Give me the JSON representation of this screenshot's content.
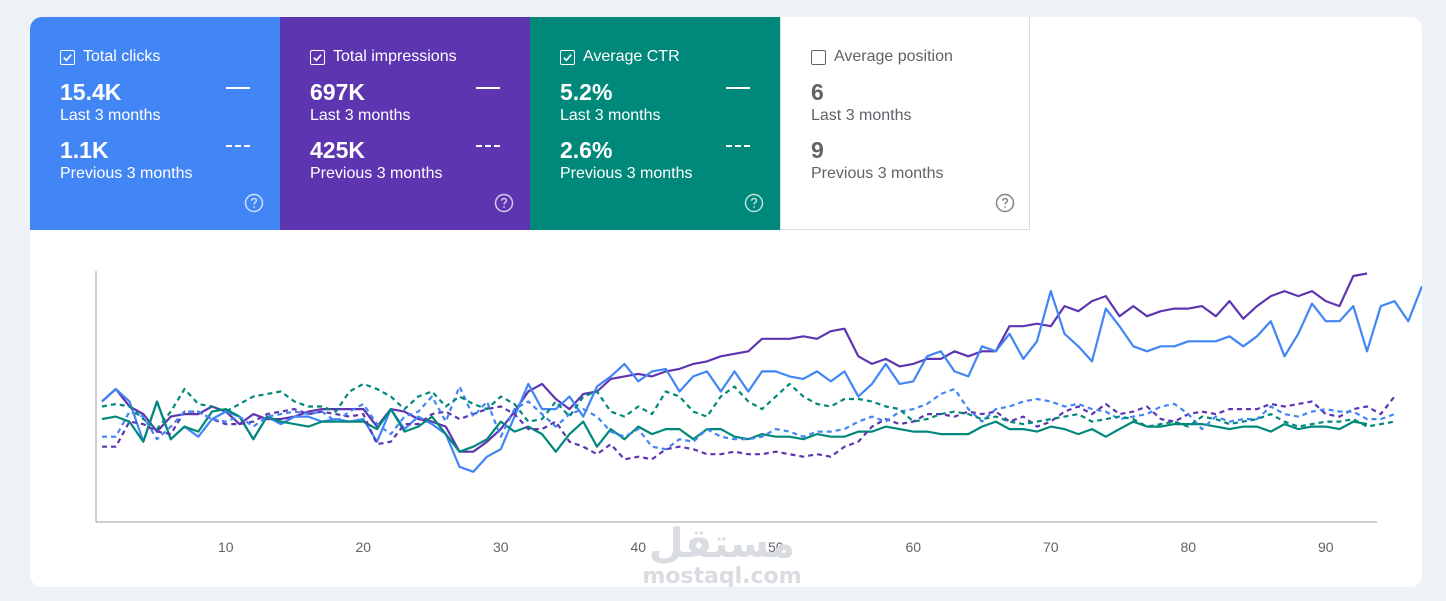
{
  "metrics": [
    {
      "name": "Total clicks",
      "checked": true,
      "current_value": "15.4K",
      "current_label": "Last 3 months",
      "previous_value": "1.1K",
      "previous_label": "Previous 3 months",
      "color": "#4285f4"
    },
    {
      "name": "Total impressions",
      "checked": true,
      "current_value": "697K",
      "current_label": "Last 3 months",
      "previous_value": "425K",
      "previous_label": "Previous 3 months",
      "color": "#5e35b1"
    },
    {
      "name": "Average CTR",
      "checked": true,
      "current_value": "5.2%",
      "current_label": "Last 3 months",
      "previous_value": "2.6%",
      "previous_label": "Previous 3 months",
      "color": "#00897b"
    },
    {
      "name": "Average position",
      "checked": false,
      "current_value": "6",
      "current_label": "Last 3 months",
      "previous_value": "9",
      "previous_label": "Previous 3 months",
      "color": "#ffffff"
    }
  ],
  "watermark": {
    "arabic": "مستقل",
    "latin": "mostaql.com"
  },
  "chart_data": {
    "type": "line",
    "title": "",
    "xlabel": "",
    "ylabel": "",
    "xlim": [
      0,
      93
    ],
    "ylim": [
      0,
      100
    ],
    "x_ticks": [
      10,
      20,
      30,
      40,
      50,
      60,
      70,
      80,
      90
    ],
    "grid": false,
    "series": [
      {
        "name": "Total impressions - Last 3 months",
        "color": "#5e35b1",
        "style": "solid",
        "values": [
          48,
          53,
          46,
          43,
          36,
          42,
          43,
          43,
          46,
          44,
          39,
          43,
          41,
          41,
          42,
          44,
          45,
          45,
          45,
          45,
          38,
          45,
          44,
          41,
          40,
          38,
          28,
          28,
          32,
          37,
          44,
          52,
          55,
          49,
          45,
          51,
          52,
          57,
          58,
          59,
          58,
          60,
          61,
          63,
          64,
          66,
          67,
          68,
          73,
          73,
          73,
          74,
          73,
          76,
          77,
          66,
          63,
          65,
          62,
          63,
          65,
          65,
          68,
          66,
          68,
          68,
          78,
          78,
          79,
          78,
          86,
          84,
          88,
          90,
          82,
          86,
          82,
          84,
          85,
          85,
          86,
          82,
          88,
          81,
          86,
          90,
          92,
          90,
          92,
          88,
          86,
          98,
          99
        ]
      },
      {
        "name": "Total clicks - Last 3 months",
        "color": "#4285f4",
        "style": "solid",
        "values": [
          48,
          53,
          48,
          32,
          48,
          33,
          38,
          34,
          41,
          44,
          42,
          33,
          42,
          39,
          42,
          42,
          40,
          41,
          40,
          41,
          32,
          45,
          37,
          42,
          39,
          35,
          22,
          20,
          26,
          29,
          42,
          55,
          45,
          45,
          50,
          42,
          54,
          58,
          63,
          56,
          60,
          61,
          52,
          58,
          60,
          52,
          60,
          52,
          60,
          60,
          58,
          57,
          60,
          56,
          60,
          50,
          55,
          63,
          55,
          56,
          66,
          68,
          60,
          58,
          70,
          68,
          75,
          65,
          72,
          92,
          75,
          70,
          64,
          85,
          78,
          70,
          68,
          70,
          70,
          72,
          72,
          72,
          74,
          70,
          74,
          80,
          66,
          75,
          87,
          80,
          80,
          86,
          68,
          86,
          88,
          80,
          94
        ]
      },
      {
        "name": "Average CTR - Last 3 months",
        "color": "#00897b",
        "style": "solid",
        "values": [
          41,
          42,
          40,
          32,
          48,
          33,
          38,
          36,
          44,
          45,
          42,
          33,
          42,
          40,
          39,
          38,
          40,
          40,
          40,
          40,
          37,
          45,
          36,
          38,
          42,
          35,
          28,
          30,
          33,
          40,
          36,
          38,
          35,
          28,
          35,
          40,
          30,
          37,
          33,
          38,
          35,
          37,
          37,
          33,
          37,
          37,
          34,
          33,
          35,
          34,
          34,
          33,
          35,
          34,
          34,
          36,
          36,
          38,
          37,
          36,
          36,
          35,
          35,
          35,
          38,
          40,
          37,
          37,
          36,
          38,
          37,
          35,
          37,
          34,
          37,
          40,
          38,
          38,
          39,
          39,
          39,
          38,
          37,
          38,
          38,
          36,
          39,
          37,
          38,
          38,
          37,
          40,
          39
        ]
      },
      {
        "name": "Total impressions - Previous 3 months",
        "color": "#5e35b1",
        "style": "dashed",
        "values": [
          30,
          30,
          40,
          39,
          36,
          35,
          44,
          44,
          41,
          39,
          39,
          40,
          43,
          44,
          45,
          43,
          44,
          43,
          42,
          43,
          31,
          32,
          39,
          39,
          43,
          44,
          41,
          43,
          45,
          46,
          43,
          37,
          37,
          40,
          32,
          30,
          27,
          31,
          25,
          26,
          25,
          29,
          30,
          29,
          27,
          27,
          28,
          27,
          27,
          28,
          27,
          26,
          27,
          26,
          30,
          32,
          38,
          41,
          39,
          40,
          43,
          43,
          42,
          44,
          43,
          44,
          40,
          42,
          38,
          40,
          44,
          46,
          43,
          47,
          43,
          44,
          46,
          41,
          40,
          43,
          44,
          43,
          45,
          45,
          45,
          47,
          46,
          47,
          48,
          43,
          42,
          45,
          46,
          43,
          50
        ]
      },
      {
        "name": "Total clicks - Previous 3 months",
        "color": "#4285f4",
        "style": "dashed",
        "values": [
          34,
          34,
          44,
          42,
          33,
          38,
          44,
          44,
          41,
          40,
          42,
          38,
          42,
          43,
          44,
          43,
          44,
          40,
          44,
          47,
          39,
          35,
          42,
          44,
          50,
          40,
          54,
          42,
          48,
          34,
          45,
          48,
          43,
          38,
          43,
          45,
          42,
          36,
          34,
          37,
          30,
          29,
          33,
          32,
          37,
          34,
          33,
          33,
          34,
          37,
          36,
          34,
          36,
          36,
          37,
          40,
          42,
          40,
          44,
          45,
          47,
          51,
          53,
          45,
          40,
          45,
          46,
          48,
          49,
          48,
          46,
          47,
          45,
          44,
          41,
          42,
          43,
          46,
          47,
          43,
          37,
          42,
          40,
          41,
          41,
          46,
          43,
          42,
          44,
          45,
          44,
          44,
          41,
          41,
          43
        ]
      },
      {
        "name": "Average CTR - Previous 3 months",
        "color": "#00897b",
        "style": "dashed",
        "values": [
          46,
          47,
          46,
          41,
          37,
          44,
          53,
          47,
          46,
          44,
          47,
          50,
          51,
          52,
          48,
          46,
          46,
          44,
          52,
          55,
          53,
          50,
          45,
          50,
          52,
          46,
          50,
          47,
          45,
          50,
          47,
          40,
          41,
          48,
          42,
          50,
          52,
          44,
          42,
          46,
          43,
          52,
          50,
          44,
          42,
          50,
          54,
          48,
          45,
          50,
          55,
          50,
          47,
          46,
          49,
          49,
          48,
          46,
          45,
          40,
          41,
          43,
          44,
          43,
          41,
          42,
          40,
          39,
          40,
          41,
          42,
          43,
          40,
          41,
          42,
          41,
          38,
          39,
          40,
          38,
          42,
          41,
          39,
          40,
          41,
          43,
          40,
          38,
          39,
          40,
          40,
          41,
          38,
          39,
          40
        ]
      }
    ]
  }
}
